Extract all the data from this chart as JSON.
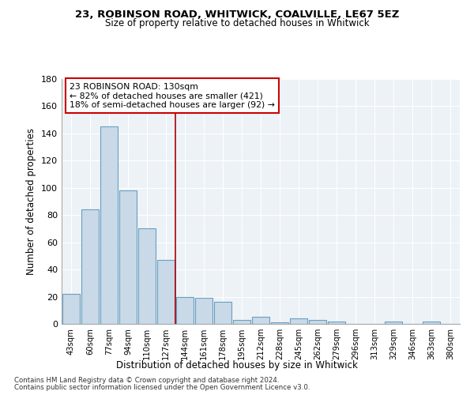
{
  "title1": "23, ROBINSON ROAD, WHITWICK, COALVILLE, LE67 5EZ",
  "title2": "Size of property relative to detached houses in Whitwick",
  "xlabel": "Distribution of detached houses by size in Whitwick",
  "ylabel": "Number of detached properties",
  "bar_labels": [
    "43sqm",
    "60sqm",
    "77sqm",
    "94sqm",
    "110sqm",
    "127sqm",
    "144sqm",
    "161sqm",
    "178sqm",
    "195sqm",
    "212sqm",
    "228sqm",
    "245sqm",
    "262sqm",
    "279sqm",
    "296sqm",
    "313sqm",
    "329sqm",
    "346sqm",
    "363sqm",
    "380sqm"
  ],
  "bar_values": [
    22,
    84,
    145,
    98,
    70,
    47,
    20,
    19,
    16,
    3,
    5,
    1,
    4,
    3,
    2,
    0,
    0,
    2,
    0,
    2,
    0
  ],
  "bar_color": "#c9d9e8",
  "bar_edge_color": "#6a9fc0",
  "vline_color": "#aa0000",
  "annotation_line1": "23 ROBINSON ROAD: 130sqm",
  "annotation_line2": "← 82% of detached houses are smaller (421)",
  "annotation_line3": "18% of semi-detached houses are larger (92) →",
  "annotation_box_color": "#cc0000",
  "footer1": "Contains HM Land Registry data © Crown copyright and database right 2024.",
  "footer2": "Contains public sector information licensed under the Open Government Licence v3.0.",
  "bg_color": "#edf2f7",
  "ylim": [
    0,
    180
  ],
  "yticks": [
    0,
    20,
    40,
    60,
    80,
    100,
    120,
    140,
    160,
    180
  ],
  "vline_bar_index": 5.5
}
